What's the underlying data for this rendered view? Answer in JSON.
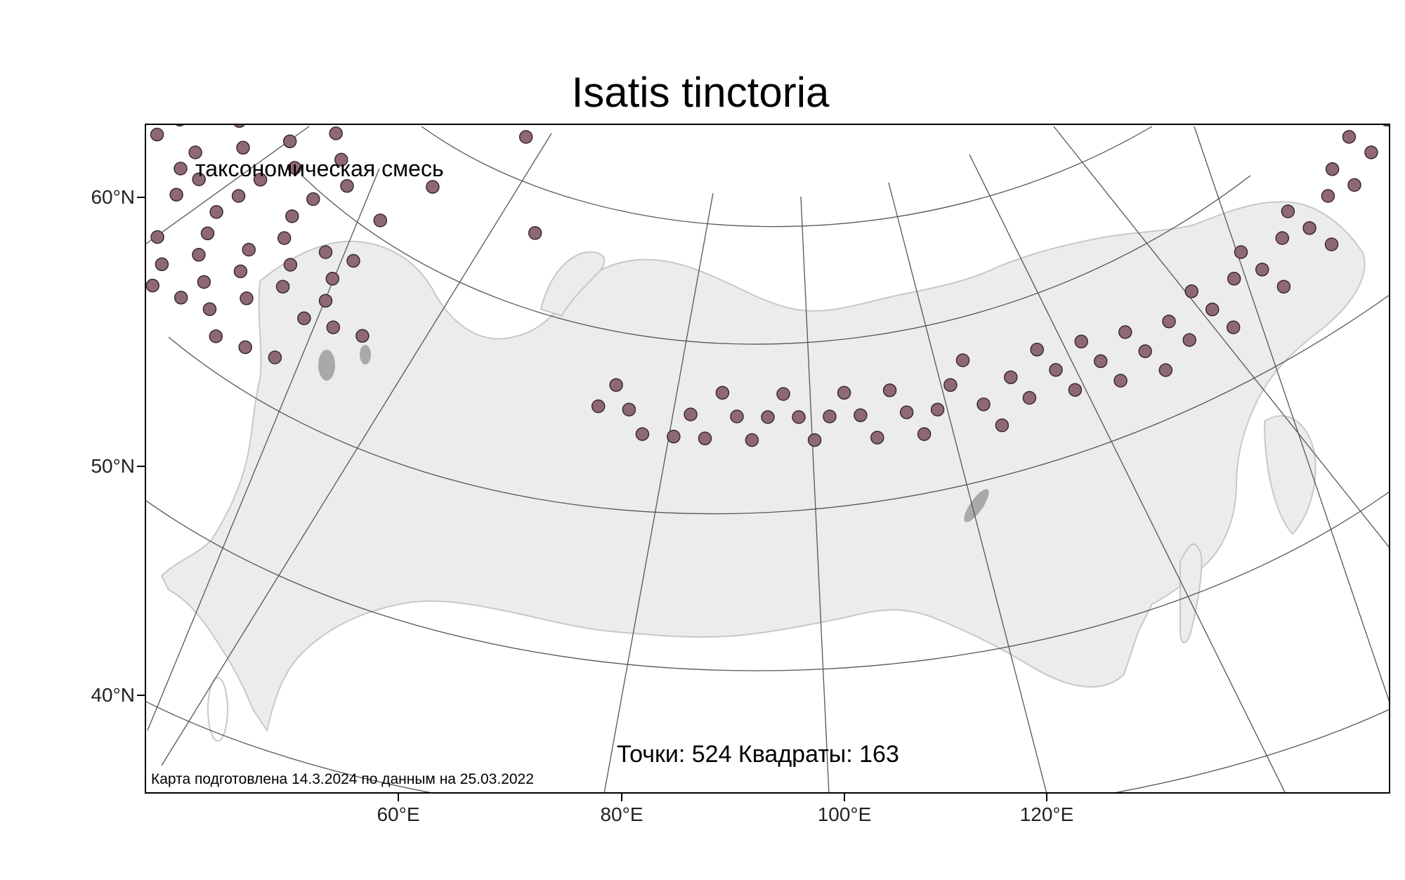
{
  "title": "Isatis tinctoria",
  "legend": {
    "label": "таксономическая смесь",
    "marker_color": "#8f6878",
    "marker_stroke": "#3a2a30"
  },
  "stats": "Точки: 524 Квадраты: 163",
  "credit": "Карта подготовлена 14.3.2024 по данным на 25.03.2022",
  "axes": {
    "lat_labels": [
      "60°N",
      "50°N",
      "40°N"
    ],
    "lon_labels": [
      "60°E",
      "80°E",
      "100°E",
      "120°E"
    ]
  },
  "colors": {
    "land": "#ececec",
    "coast": "#c8c8c8",
    "graticule": "#555555",
    "lakes": "#a9a9a9"
  },
  "points": [
    [
      37,
      52
    ],
    [
      41,
      52
    ],
    [
      44,
      52
    ],
    [
      46,
      52
    ],
    [
      48,
      52
    ],
    [
      50,
      52
    ],
    [
      52,
      52
    ],
    [
      53,
      51
    ],
    [
      55,
      51
    ],
    [
      57,
      51
    ],
    [
      40,
      53
    ],
    [
      43,
      53
    ],
    [
      48,
      53
    ],
    [
      51,
      53
    ],
    [
      54,
      53
    ],
    [
      58,
      53
    ],
    [
      60,
      53
    ],
    [
      62,
      53
    ],
    [
      38,
      54
    ],
    [
      44,
      54
    ],
    [
      47,
      54
    ],
    [
      50,
      54
    ],
    [
      53,
      54
    ],
    [
      56,
      54
    ],
    [
      59,
      54
    ],
    [
      39,
      55
    ],
    [
      41,
      55
    ],
    [
      50,
      55
    ],
    [
      53,
      55
    ],
    [
      56,
      55
    ],
    [
      59,
      55
    ],
    [
      37,
      56
    ],
    [
      43,
      56
    ],
    [
      47,
      56
    ],
    [
      50,
      56
    ],
    [
      55,
      56
    ],
    [
      58,
      56
    ],
    [
      60,
      56
    ],
    [
      35,
      57
    ],
    [
      38,
      57
    ],
    [
      42,
      57
    ],
    [
      48,
      57
    ],
    [
      51,
      57
    ],
    [
      55,
      57
    ],
    [
      36,
      58
    ],
    [
      39,
      58
    ],
    [
      44,
      58
    ],
    [
      47,
      58
    ],
    [
      52,
      58
    ],
    [
      56,
      58
    ],
    [
      61,
      58
    ],
    [
      40,
      59
    ],
    [
      45,
      59
    ],
    [
      50,
      59
    ],
    [
      54,
      59
    ],
    [
      58,
      59
    ],
    [
      33,
      60
    ],
    [
      37,
      60
    ],
    [
      42,
      60
    ],
    [
      46,
      60
    ],
    [
      49,
      60
    ],
    [
      53,
      60
    ],
    [
      57,
      60
    ],
    [
      64,
      60
    ],
    [
      35,
      61
    ],
    [
      39,
      61
    ],
    [
      44,
      61
    ],
    [
      48,
      61
    ],
    [
      52,
      61
    ],
    [
      56,
      61
    ],
    [
      38,
      62
    ],
    [
      43,
      62
    ],
    [
      47,
      62
    ],
    [
      51,
      62
    ],
    [
      40,
      63
    ],
    [
      45,
      63
    ],
    [
      49,
      63
    ],
    [
      34,
      64
    ],
    [
      42,
      64
    ],
    [
      47,
      64
    ],
    [
      37,
      65
    ],
    [
      44,
      65
    ],
    [
      51,
      65
    ],
    [
      39,
      66
    ],
    [
      46,
      66
    ],
    [
      50,
      66
    ],
    [
      41,
      67
    ],
    [
      48,
      67
    ],
    [
      53,
      67
    ],
    [
      43,
      68
    ],
    [
      47,
      68
    ],
    [
      45,
      69
    ],
    [
      49,
      69
    ],
    [
      41,
      70
    ],
    [
      33,
      71
    ],
    [
      44,
      71
    ],
    [
      46,
      72
    ],
    [
      68,
      65
    ],
    [
      70,
      63
    ],
    [
      72,
      59
    ],
    [
      78,
      52
    ],
    [
      79,
      53
    ],
    [
      80,
      52
    ],
    [
      81,
      51
    ],
    [
      83,
      51
    ],
    [
      84,
      52
    ],
    [
      85,
      51
    ],
    [
      86,
      53
    ],
    [
      87,
      52
    ],
    [
      88,
      51
    ],
    [
      89,
      52
    ],
    [
      90,
      53
    ],
    [
      91,
      52
    ],
    [
      92,
      51
    ],
    [
      93,
      52
    ],
    [
      94,
      53
    ],
    [
      95,
      52
    ],
    [
      96,
      51
    ],
    [
      97,
      53
    ],
    [
      98,
      52
    ],
    [
      99,
      51
    ],
    [
      100,
      52
    ],
    [
      101,
      53
    ],
    [
      102,
      54
    ],
    [
      103,
      52
    ],
    [
      104,
      51
    ],
    [
      105,
      53
    ],
    [
      106,
      52
    ],
    [
      107,
      54
    ],
    [
      108,
      53
    ],
    [
      109,
      52
    ],
    [
      110,
      54
    ],
    [
      111,
      53
    ],
    [
      112,
      52
    ],
    [
      113,
      54
    ],
    [
      114,
      53
    ],
    [
      115,
      52
    ],
    [
      116,
      54
    ],
    [
      117,
      53
    ],
    [
      118,
      55
    ],
    [
      119,
      54
    ],
    [
      120,
      53
    ],
    [
      121,
      55
    ],
    [
      122,
      56
    ],
    [
      123,
      55
    ],
    [
      124,
      54
    ],
    [
      125,
      56
    ],
    [
      126,
      57
    ],
    [
      127,
      56
    ],
    [
      128,
      55
    ],
    [
      129,
      57
    ],
    [
      130,
      58
    ],
    [
      131,
      57
    ],
    [
      132,
      59
    ],
    [
      133,
      58
    ],
    [
      134,
      60
    ],
    [
      135,
      59
    ],
    [
      136,
      61
    ],
    [
      137,
      60
    ],
    [
      138,
      62
    ],
    [
      139,
      61
    ],
    [
      140,
      63
    ],
    [
      141,
      62
    ],
    [
      142,
      64
    ],
    [
      143,
      63
    ],
    [
      144,
      65
    ],
    [
      145,
      64
    ],
    [
      146,
      66
    ],
    [
      147,
      65
    ],
    [
      148,
      67
    ],
    [
      149,
      66
    ],
    [
      150,
      68
    ],
    [
      151,
      67
    ],
    [
      152,
      69
    ],
    [
      153,
      68
    ],
    [
      154,
      70
    ],
    [
      155,
      69
    ],
    [
      156,
      71
    ],
    [
      157,
      70
    ],
    [
      158,
      72
    ],
    [
      159,
      71
    ],
    [
      160,
      73
    ],
    [
      161,
      72
    ],
    [
      162,
      74
    ],
    [
      163,
      73
    ],
    [
      164,
      75
    ],
    [
      165,
      74
    ],
    [
      166,
      76
    ],
    [
      167,
      75
    ],
    [
      168,
      77
    ],
    [
      169,
      76
    ]
  ]
}
